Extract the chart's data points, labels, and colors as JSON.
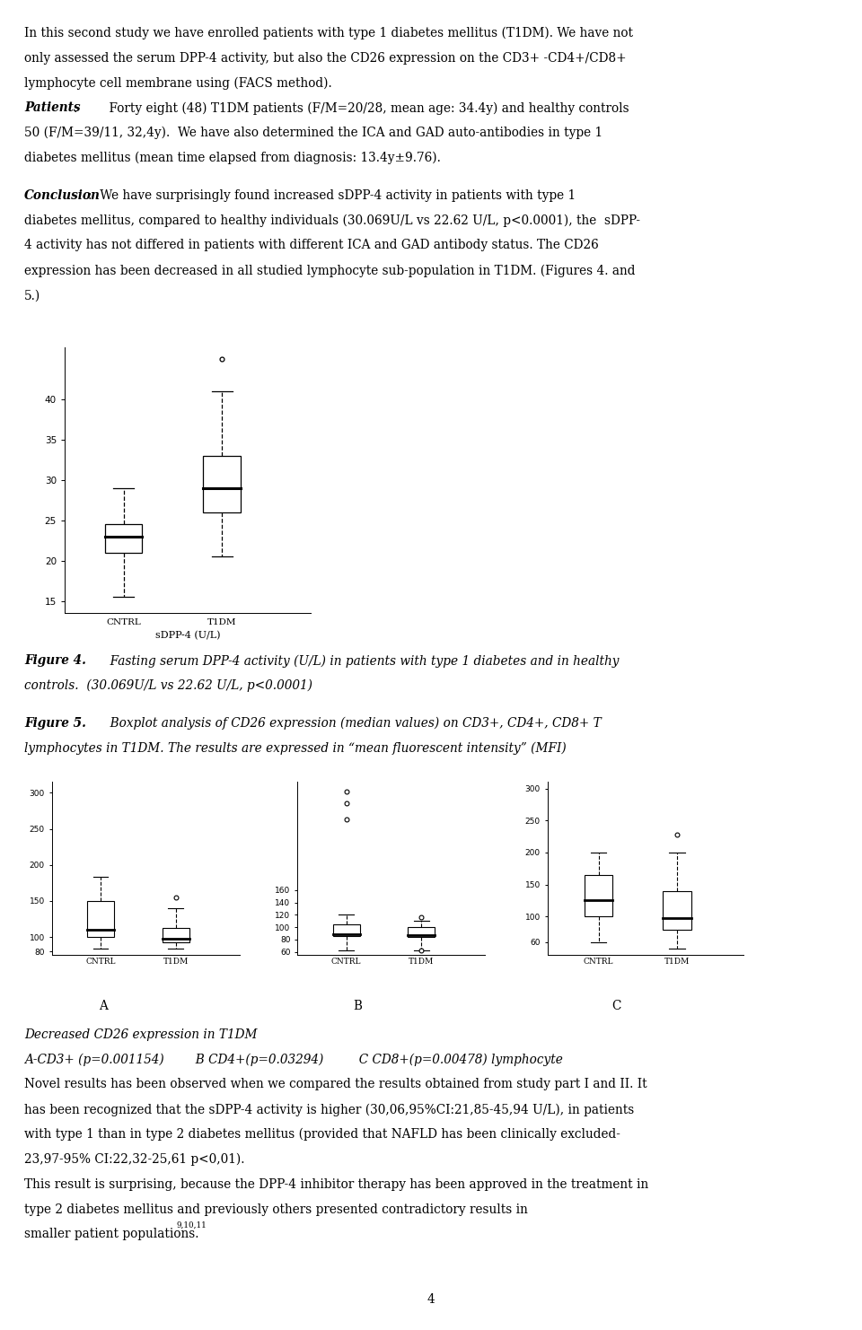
{
  "fig4": {
    "xlabel": "sDPP-4 (U/L)",
    "categories": [
      "CNTRL",
      "T1DM"
    ],
    "cntrl_box": {
      "q1": 21.0,
      "median": 23.0,
      "q3": 24.5,
      "whisker_low": 15.5,
      "whisker_high": 29.0
    },
    "t1dm_box": {
      "q1": 26.0,
      "median": 29.0,
      "q3": 33.0,
      "whisker_low": 20.5,
      "whisker_high": 41.0
    },
    "cntrl_outliers": [],
    "t1dm_outliers": [
      45.0
    ],
    "yticks": [
      15,
      20,
      25,
      30,
      35,
      40
    ],
    "ylim": [
      13.5,
      46.5
    ]
  },
  "fig5A": {
    "categories": [
      "CNTRL",
      "T1DM"
    ],
    "cntrl_box": {
      "q1": 100.0,
      "median": 110.0,
      "q3": 150.0,
      "whisker_low": 84.0,
      "whisker_high": 183.0
    },
    "t1dm_box": {
      "q1": 92.0,
      "median": 98.0,
      "q3": 112.0,
      "whisker_low": 84.0,
      "whisker_high": 140.0
    },
    "cntrl_outliers": [],
    "t1dm_outliers": [
      155.0
    ],
    "yticks": [
      80,
      100,
      150,
      200,
      250,
      300
    ],
    "ylim": [
      75,
      315
    ]
  },
  "fig5B": {
    "categories": [
      "CNTRL",
      "T1DM"
    ],
    "cntrl_box": {
      "q1": 86.0,
      "median": 89.0,
      "q3": 105.0,
      "whisker_low": 62.0,
      "whisker_high": 120.0
    },
    "t1dm_box": {
      "q1": 84.0,
      "median": 87.0,
      "q3": 100.0,
      "whisker_low": 62.0,
      "whisker_high": 110.0
    },
    "cntrl_outliers": [
      275.0,
      300.0,
      320.0
    ],
    "t1dm_outliers": [
      116.0,
      62.0
    ],
    "yticks": [
      60,
      80,
      100,
      120,
      140,
      160
    ],
    "ylim": [
      55,
      335
    ]
  },
  "fig5C": {
    "categories": [
      "CNTRL",
      "T1DM"
    ],
    "cntrl_box": {
      "q1": 100.0,
      "median": 125.0,
      "q3": 165.0,
      "whisker_low": 60.0,
      "whisker_high": 200.0
    },
    "t1dm_box": {
      "q1": 80.0,
      "median": 97.0,
      "q3": 140.0,
      "whisker_low": 50.0,
      "whisker_high": 200.0
    },
    "cntrl_outliers": [],
    "t1dm_outliers": [
      228.0
    ],
    "yticks": [
      60,
      100,
      150,
      200,
      250,
      300
    ],
    "ylim": [
      40,
      310
    ]
  },
  "bg_color": "#ffffff"
}
